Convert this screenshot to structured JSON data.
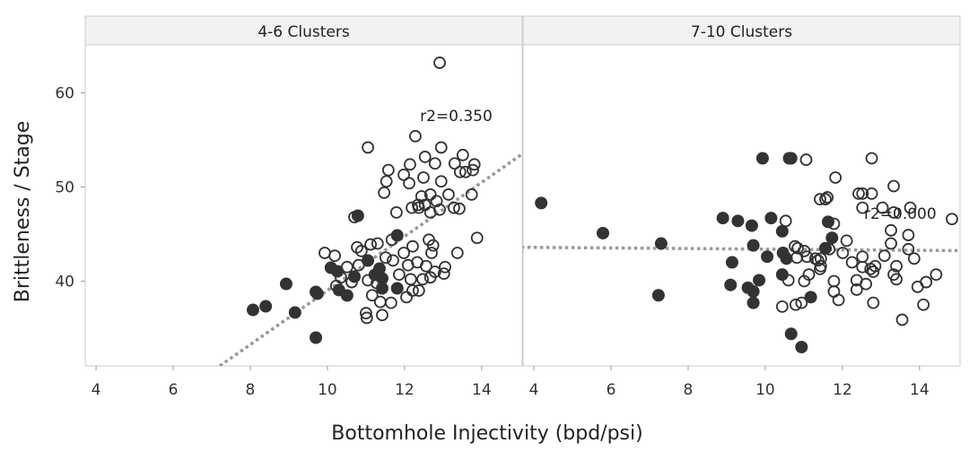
{
  "chart_data": {
    "type": "scatter",
    "xlabel": "Bottomhole Injectivity (bpd/psi)",
    "ylabel": "Brittleness / Stage",
    "xlim": [
      3.72,
      15.05
    ],
    "ylim": [
      31.0,
      65.1
    ],
    "xticks": [
      4,
      6,
      8,
      10,
      12,
      14
    ],
    "yticks": [
      40,
      50,
      60
    ],
    "grid": false,
    "colors": {
      "marker": "#333333",
      "trendline": "#999999",
      "strip": "#f2f2f2",
      "frame": "#cccccc"
    },
    "panels": [
      {
        "title": "4-6 Clusters",
        "annotation": {
          "text": "r2=0.350",
          "x": 12.4,
          "y": 57.0
        },
        "trendline": {
          "x": [
            7.21,
            15.05
          ],
          "y": [
            31.0,
            53.5
          ]
        },
        "filled": [
          [
            10.79,
            46.95
          ],
          [
            11.81,
            44.86
          ],
          [
            8.93,
            39.71
          ],
          [
            8.07,
            36.95
          ],
          [
            8.4,
            37.33
          ],
          [
            9.16,
            36.67
          ],
          [
            9.7,
            34.0
          ],
          [
            9.7,
            38.86
          ],
          [
            9.74,
            38.67
          ],
          [
            10.09,
            41.43
          ],
          [
            10.26,
            41.05
          ],
          [
            10.7,
            40.48
          ],
          [
            10.3,
            39.05
          ],
          [
            10.51,
            38.48
          ],
          [
            11.05,
            42.19
          ],
          [
            11.35,
            41.33
          ],
          [
            11.23,
            40.67
          ],
          [
            11.42,
            40.29
          ],
          [
            11.42,
            39.24
          ],
          [
            11.81,
            39.24
          ]
        ],
        "open": [
          [
            12.91,
            63.2
          ],
          [
            11.05,
            54.2
          ],
          [
            12.28,
            55.4
          ],
          [
            12.95,
            54.2
          ],
          [
            12.53,
            53.2
          ],
          [
            13.51,
            53.4
          ],
          [
            13.3,
            52.5
          ],
          [
            12.14,
            52.4
          ],
          [
            12.79,
            52.5
          ],
          [
            11.58,
            51.8
          ],
          [
            13.77,
            51.8
          ],
          [
            13.44,
            51.6
          ],
          [
            13.58,
            51.6
          ],
          [
            13.81,
            52.4
          ],
          [
            12.49,
            51.0
          ],
          [
            11.53,
            50.6
          ],
          [
            11.98,
            51.3
          ],
          [
            12.12,
            50.4
          ],
          [
            12.95,
            50.6
          ],
          [
            12.44,
            49.0
          ],
          [
            12.67,
            49.2
          ],
          [
            13.14,
            49.2
          ],
          [
            13.74,
            49.2
          ],
          [
            11.47,
            49.4
          ],
          [
            12.83,
            48.5
          ],
          [
            12.19,
            47.8
          ],
          [
            12.37,
            47.8
          ],
          [
            12.53,
            48.1
          ],
          [
            12.67,
            47.3
          ],
          [
            12.91,
            47.6
          ],
          [
            13.28,
            47.8
          ],
          [
            10.7,
            46.8
          ],
          [
            11.79,
            47.3
          ],
          [
            13.42,
            47.7
          ],
          [
            12.35,
            48.1
          ],
          [
            9.93,
            43.0
          ],
          [
            10.19,
            42.7
          ],
          [
            10.77,
            43.6
          ],
          [
            10.88,
            43.2
          ],
          [
            11.12,
            43.9
          ],
          [
            11.3,
            44.0
          ],
          [
            11.67,
            44.4
          ],
          [
            11.98,
            43.0
          ],
          [
            12.21,
            43.7
          ],
          [
            12.63,
            44.4
          ],
          [
            12.74,
            43.8
          ],
          [
            12.7,
            43.0
          ],
          [
            13.37,
            43.0
          ],
          [
            13.88,
            44.6
          ],
          [
            10.51,
            41.5
          ],
          [
            10.81,
            41.7
          ],
          [
            11.51,
            42.5
          ],
          [
            11.7,
            42.2
          ],
          [
            12.09,
            41.7
          ],
          [
            12.33,
            42.0
          ],
          [
            12.56,
            41.6
          ],
          [
            12.79,
            41.0
          ],
          [
            13.05,
            41.5
          ],
          [
            13.02,
            40.8
          ],
          [
            10.35,
            40.4
          ],
          [
            10.63,
            39.9
          ],
          [
            11.05,
            40.1
          ],
          [
            11.28,
            39.8
          ],
          [
            11.86,
            40.7
          ],
          [
            12.16,
            40.2
          ],
          [
            12.47,
            40.2
          ],
          [
            12.67,
            40.4
          ],
          [
            11.16,
            38.5
          ],
          [
            11.37,
            37.8
          ],
          [
            11.65,
            37.7
          ],
          [
            12.05,
            38.3
          ],
          [
            12.37,
            39.0
          ],
          [
            12.21,
            39.0
          ],
          [
            11.0,
            36.6
          ],
          [
            11.02,
            36.1
          ],
          [
            11.42,
            36.4
          ],
          [
            10.23,
            39.5
          ]
        ]
      },
      {
        "title": "7-10 Clusters",
        "annotation": {
          "text": "r2=0.000",
          "x": 12.56,
          "y": 46.6
        },
        "trendline": {
          "x": [
            3.67,
            15.1
          ],
          "y": [
            43.6,
            43.24
          ]
        },
        "filled": [
          [
            4.19,
            48.3
          ],
          [
            5.79,
            45.1
          ],
          [
            7.3,
            44.0
          ],
          [
            7.23,
            38.5
          ],
          [
            9.93,
            53.05
          ],
          [
            10.67,
            53.05
          ],
          [
            10.62,
            53.05
          ],
          [
            8.9,
            46.7
          ],
          [
            9.29,
            46.4
          ],
          [
            9.65,
            45.9
          ],
          [
            10.15,
            46.7
          ],
          [
            10.44,
            45.3
          ],
          [
            11.63,
            46.3
          ],
          [
            11.73,
            44.6
          ],
          [
            9.69,
            43.8
          ],
          [
            11.56,
            43.5
          ],
          [
            10.46,
            43.0
          ],
          [
            10.55,
            42.4
          ],
          [
            10.05,
            42.6
          ],
          [
            9.14,
            42.0
          ],
          [
            10.44,
            40.7
          ],
          [
            9.84,
            40.1
          ],
          [
            9.1,
            39.6
          ],
          [
            9.55,
            39.3
          ],
          [
            9.69,
            38.9
          ],
          [
            9.69,
            37.7
          ],
          [
            11.18,
            38.3
          ],
          [
            10.67,
            34.4
          ],
          [
            10.94,
            33.0
          ]
        ],
        "open": [
          [
            11.06,
            52.9
          ],
          [
            12.76,
            53.05
          ],
          [
            11.82,
            51.0
          ],
          [
            13.33,
            50.1
          ],
          [
            11.42,
            48.7
          ],
          [
            11.56,
            48.7
          ],
          [
            11.61,
            48.9
          ],
          [
            12.42,
            49.3
          ],
          [
            12.52,
            49.3
          ],
          [
            12.76,
            49.3
          ],
          [
            12.52,
            47.8
          ],
          [
            13.04,
            47.8
          ],
          [
            13.76,
            47.8
          ],
          [
            13.33,
            47.3
          ],
          [
            10.53,
            46.4
          ],
          [
            11.78,
            46.1
          ],
          [
            14.84,
            46.6
          ],
          [
            13.26,
            45.4
          ],
          [
            13.71,
            44.9
          ],
          [
            13.26,
            44.0
          ],
          [
            12.11,
            44.3
          ],
          [
            13.71,
            43.4
          ],
          [
            13.09,
            42.7
          ],
          [
            13.86,
            42.4
          ],
          [
            10.77,
            43.7
          ],
          [
            10.84,
            43.5
          ],
          [
            11.01,
            43.2
          ],
          [
            10.82,
            42.5
          ],
          [
            11.08,
            42.6
          ],
          [
            11.3,
            42.4
          ],
          [
            11.37,
            42.2
          ],
          [
            11.44,
            42.4
          ],
          [
            11.66,
            43.4
          ],
          [
            12.01,
            43.0
          ],
          [
            12.25,
            42.0
          ],
          [
            12.52,
            42.6
          ],
          [
            12.52,
            41.5
          ],
          [
            12.73,
            41.3
          ],
          [
            12.85,
            41.6
          ],
          [
            12.8,
            41.0
          ],
          [
            13.4,
            41.6
          ],
          [
            13.33,
            40.7
          ],
          [
            13.4,
            40.2
          ],
          [
            10.6,
            40.1
          ],
          [
            11.01,
            40.0
          ],
          [
            11.13,
            40.7
          ],
          [
            11.42,
            41.3
          ],
          [
            11.44,
            41.6
          ],
          [
            11.78,
            40.0
          ],
          [
            11.78,
            38.9
          ],
          [
            11.9,
            38.0
          ],
          [
            12.37,
            40.1
          ],
          [
            12.61,
            39.7
          ],
          [
            12.37,
            39.1
          ],
          [
            12.8,
            37.7
          ],
          [
            13.95,
            39.4
          ],
          [
            14.17,
            39.9
          ],
          [
            14.43,
            40.7
          ],
          [
            14.1,
            37.5
          ],
          [
            13.55,
            35.9
          ],
          [
            10.44,
            37.3
          ],
          [
            10.79,
            37.5
          ],
          [
            10.94,
            37.7
          ]
        ]
      }
    ]
  }
}
